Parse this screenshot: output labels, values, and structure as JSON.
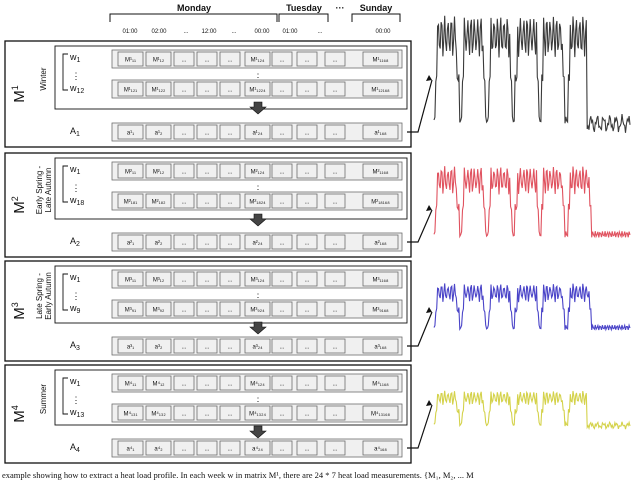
{
  "header": {
    "days": [
      "Monday",
      "Tuesday",
      "Sunday"
    ],
    "between_dots": "···",
    "times": [
      "01:00",
      "02:00",
      "...",
      "12:00",
      "...",
      "00:00",
      "01:00",
      "...",
      "00:00"
    ]
  },
  "sections": [
    {
      "matrix_base": "M",
      "matrix_sup": "1",
      "season": "Winter",
      "row1_label": "w1",
      "row2_label": "w12",
      "row1_cells": [
        "M¹₁₁",
        "M¹₁₂",
        "...",
        "...",
        "...",
        "M¹₁₂₄",
        "...",
        "...",
        "...",
        "M¹₁₁₆₈"
      ],
      "row2_cells": [
        "M¹₁₂₁",
        "M¹₁₂₂",
        "...",
        "...",
        "...",
        "M¹₁₂₂₄",
        "...",
        "...",
        "...",
        "M¹₁₂₁₆₈"
      ],
      "agg_label": "A1",
      "agg_cells": [
        "a¹₁",
        "a¹₂",
        "...",
        "...",
        "...",
        "a¹₂₄",
        "...",
        "...",
        "...",
        "a¹₁₆₈"
      ],
      "color": "#3a3a3a"
    },
    {
      "matrix_base": "M",
      "matrix_sup": "2",
      "season": "Early Spring - Late Autumn",
      "row1_label": "w1",
      "row2_label": "w18",
      "row1_cells": [
        "M²₁₁",
        "M²₁₂",
        "...",
        "...",
        "...",
        "M²₁₂₄",
        "...",
        "...",
        "...",
        "M²₁₁₆₈"
      ],
      "row2_cells": [
        "M²₁₈₁",
        "M²₁₈₂",
        "...",
        "...",
        "...",
        "M²₁₈₂₄",
        "...",
        "...",
        "...",
        "M²₁₈₁₆₈"
      ],
      "agg_label": "A2",
      "agg_cells": [
        "a²₁",
        "a²₂",
        "...",
        "...",
        "...",
        "a²₂₄",
        "...",
        "...",
        "...",
        "a²₁₆₈"
      ],
      "color": "#e0525f"
    },
    {
      "matrix_base": "M",
      "matrix_sup": "3",
      "season": "Late Spring - Early Autumn",
      "row1_label": "w1",
      "row2_label": "w9",
      "row1_cells": [
        "M³₁₁",
        "M³₁₂",
        "...",
        "...",
        "...",
        "M³₁₂₄",
        "...",
        "...",
        "...",
        "M³₁₁₆₈"
      ],
      "row2_cells": [
        "M³₉₁",
        "M³₉₂",
        "...",
        "...",
        "...",
        "M³₉₂₄",
        "...",
        "...",
        "...",
        "M³₉₁₆₈"
      ],
      "agg_label": "A3",
      "agg_cells": [
        "a³₁",
        "a³₂",
        "...",
        "...",
        "...",
        "a³₂₄",
        "...",
        "...",
        "...",
        "a³₁₆₈"
      ],
      "color": "#4a44c8"
    },
    {
      "matrix_base": "M",
      "matrix_sup": "4",
      "season": "Summer",
      "row1_label": "w1",
      "row2_label": "w13",
      "row1_cells": [
        "M⁴₁₁",
        "M⁴₁₂",
        "...",
        "...",
        "...",
        "M⁴₁₂₄",
        "...",
        "...",
        "...",
        "M⁴₁₁₆₈"
      ],
      "row2_cells": [
        "M⁴₁₃₁",
        "M⁴₁₃₂",
        "...",
        "...",
        "...",
        "M⁴₁₃₂₄",
        "...",
        "...",
        "...",
        "M⁴₁₃₁₆₈"
      ],
      "agg_label": "A4",
      "agg_cells": [
        "a⁴₁",
        "a⁴₂",
        "...",
        "...",
        "...",
        "a⁴₂₄",
        "...",
        "...",
        "...",
        "a⁴₁₆₈"
      ],
      "color": "#d4d24a"
    }
  ],
  "vertical_dots": "⋮",
  "caption": "example showing how to extract a heat load profile. In each week w in matrix M¹, there are 24 * 7 heat load measurements. {M₁, M₂, ... M"
}
